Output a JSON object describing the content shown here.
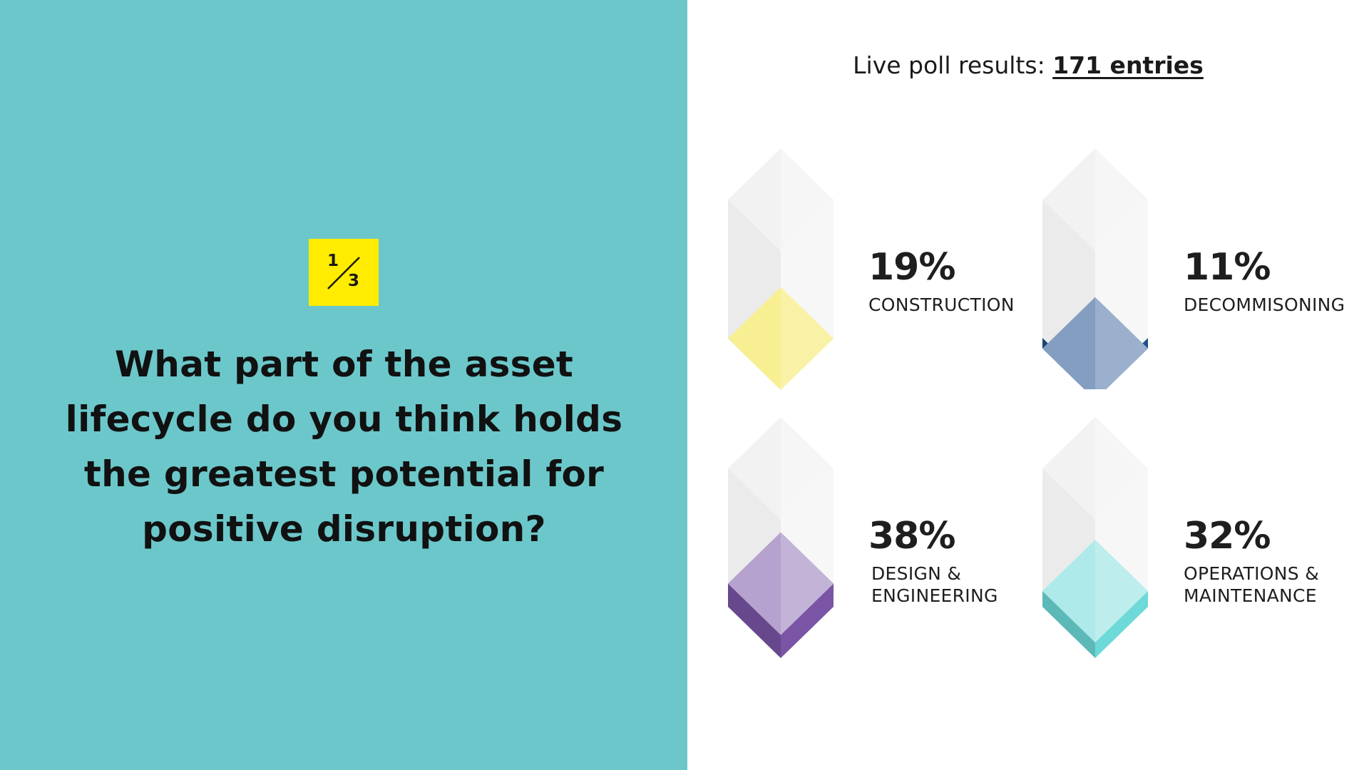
{
  "slide": {
    "fraction": {
      "numerator": "1",
      "denominator": "3"
    },
    "question": "What part of the asset lifecycle do you think holds the greatest potential for positive disruption?",
    "colors": {
      "left_panel": "#6cc7ca",
      "badge": "#ffec00"
    }
  },
  "poll": {
    "header_prefix": "Live poll results: ",
    "entries_label": "171 entries"
  },
  "chart_data": {
    "type": "bar",
    "categories": [
      "CONSTRUCTION",
      "DECOMMISONING",
      "DESIGN & ENGINEERING",
      "OPERATIONS & MAINTENANCE"
    ],
    "values": [
      19,
      11,
      38,
      32
    ],
    "unit": "%",
    "colors": [
      "#f2e23a",
      "#1f4f8e",
      "#7a55a6",
      "#6dd9d8"
    ]
  },
  "results": [
    {
      "percent": "19%",
      "label_line1": "CONSTRUCTION",
      "label_line2": "",
      "value": 19,
      "color": "#f2e23a"
    },
    {
      "percent": "11%",
      "label_line1": "DECOMMISONING",
      "label_line2": "",
      "value": 11,
      "color": "#1f4f8e"
    },
    {
      "percent": "38%",
      "label_line1": "DESIGN &",
      "label_line2": "ENGINEERING",
      "value": 38,
      "color": "#7a55a6"
    },
    {
      "percent": "32%",
      "label_line1": "OPERATIONS &",
      "label_line2": "MAINTENANCE",
      "value": 32,
      "color": "#6dd9d8"
    }
  ]
}
